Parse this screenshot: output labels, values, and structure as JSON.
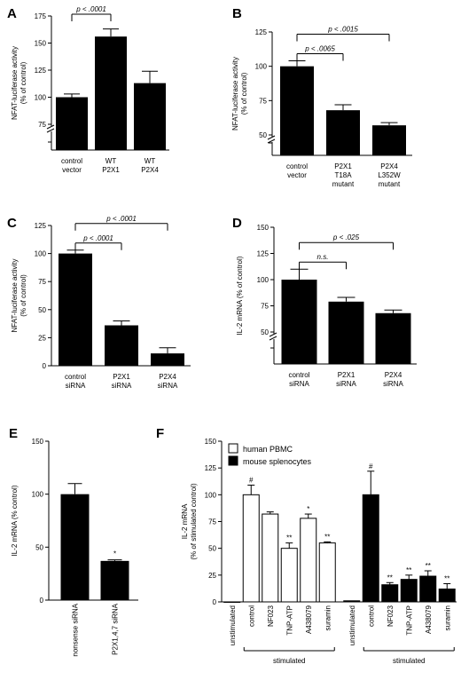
{
  "chart_data": [
    {
      "panel": "A",
      "type": "bar",
      "ylabel": [
        "NFAT-luciferase activity",
        "(% of control)"
      ],
      "categories": [
        [
          "control",
          "vector"
        ],
        [
          "WT",
          "P2X1"
        ],
        [
          "WT",
          "P2X4"
        ]
      ],
      "values": [
        100,
        156,
        113
      ],
      "errors": [
        3,
        7,
        11
      ],
      "ylim": [
        75,
        175
      ],
      "yaxis_break": true,
      "yticks": [
        75,
        100,
        125,
        150,
        175
      ],
      "below_break_tick": 0,
      "significance": [
        {
          "from": 0,
          "to": 1,
          "label": "p < .0001"
        }
      ]
    },
    {
      "panel": "B",
      "type": "bar",
      "ylabel": [
        "NFAT-luciferase activity",
        "(% of control)"
      ],
      "categories": [
        [
          "control",
          "vector"
        ],
        [
          "P2X1",
          "T18A",
          "mutant"
        ],
        [
          "P2X4",
          "L352W",
          "mutant"
        ]
      ],
      "values": [
        100,
        68,
        57
      ],
      "errors": [
        4,
        4,
        2
      ],
      "ylim": [
        50,
        125
      ],
      "yaxis_break": true,
      "yticks": [
        50,
        75,
        100,
        125
      ],
      "below_break_tick": 0,
      "significance": [
        {
          "from": 0,
          "to": 1,
          "label": "p < .0065"
        },
        {
          "from": 0,
          "to": 2,
          "label": "p < .0015"
        }
      ]
    },
    {
      "panel": "C",
      "type": "bar",
      "ylabel": [
        "NFAT-luciferase activity",
        "(% of control)"
      ],
      "categories": [
        [
          "control",
          "siRNA"
        ],
        [
          "P2X1",
          "siRNA"
        ],
        [
          "P2X4",
          "siRNA"
        ]
      ],
      "values": [
        100,
        36,
        11
      ],
      "errors": [
        3,
        4,
        5
      ],
      "ylim": [
        0,
        125
      ],
      "yaxis_break": false,
      "yticks": [
        0,
        25,
        50,
        75,
        100,
        125
      ],
      "significance": [
        {
          "from": 0,
          "to": 1,
          "label": "p < .0001"
        },
        {
          "from": 0,
          "to": 2,
          "label": "p < .0001"
        }
      ]
    },
    {
      "panel": "D",
      "type": "bar",
      "ylabel": [
        "IL-2 mRNA (% of control)"
      ],
      "categories": [
        [
          "control",
          "siRNA"
        ],
        [
          "P2X1",
          "siRNA"
        ],
        [
          "P2X4",
          "siRNA"
        ]
      ],
      "values": [
        100,
        79,
        68
      ],
      "errors": [
        10,
        4,
        3
      ],
      "ylim": [
        50,
        150
      ],
      "yaxis_break": true,
      "yticks": [
        50,
        75,
        100,
        125,
        150
      ],
      "below_break_tick": 0,
      "significance": [
        {
          "from": 0,
          "to": 1,
          "label": "n.s."
        },
        {
          "from": 0,
          "to": 2,
          "label": "p < .025"
        }
      ]
    },
    {
      "panel": "E",
      "type": "bar",
      "ylabel": [
        "IL-2 mRNA (% control)"
      ],
      "categories": [
        [
          "nonsense siRNA"
        ],
        [
          "P2X1,4,7 siRNA"
        ]
      ],
      "values": [
        100,
        37
      ],
      "errors": [
        10,
        1
      ],
      "ylim": [
        0,
        150
      ],
      "yaxis_break": false,
      "yticks": [
        0,
        50,
        100,
        150
      ],
      "marks": [
        "",
        "*"
      ]
    },
    {
      "panel": "F",
      "type": "bar",
      "ylabel": [
        "IL-2 mRNA",
        "(% of stimulated control)"
      ],
      "ylim": [
        0,
        150
      ],
      "yticks": [
        0,
        25,
        50,
        75,
        100,
        125,
        150
      ],
      "legend": {
        "placement": "top-left",
        "entries": [
          "human PBMC",
          "mouse splenocytes"
        ]
      },
      "group_label": "stimulated",
      "series": [
        {
          "name": "human PBMC",
          "color": "#ffffff",
          "categories": [
            "unstimulated",
            "control",
            "NF023",
            "TNP-ATP",
            "A438079",
            "suramin"
          ],
          "values": [
            0,
            100,
            82,
            50,
            78,
            55
          ],
          "errors": [
            0,
            9,
            2,
            5,
            4,
            1
          ],
          "marks": [
            "",
            "#",
            "",
            "**",
            "*",
            "**"
          ]
        },
        {
          "name": "mouse splenocytes",
          "color": "#000000",
          "categories": [
            "unstimulated",
            "control",
            "NF023",
            "TNP-ATP",
            "A438079",
            "suramin"
          ],
          "values": [
            1,
            100,
            16,
            21,
            24,
            12
          ],
          "errors": [
            0,
            22,
            2,
            4,
            5,
            5
          ],
          "marks": [
            "",
            "#",
            "**",
            "**",
            "**",
            "**"
          ]
        }
      ]
    }
  ]
}
